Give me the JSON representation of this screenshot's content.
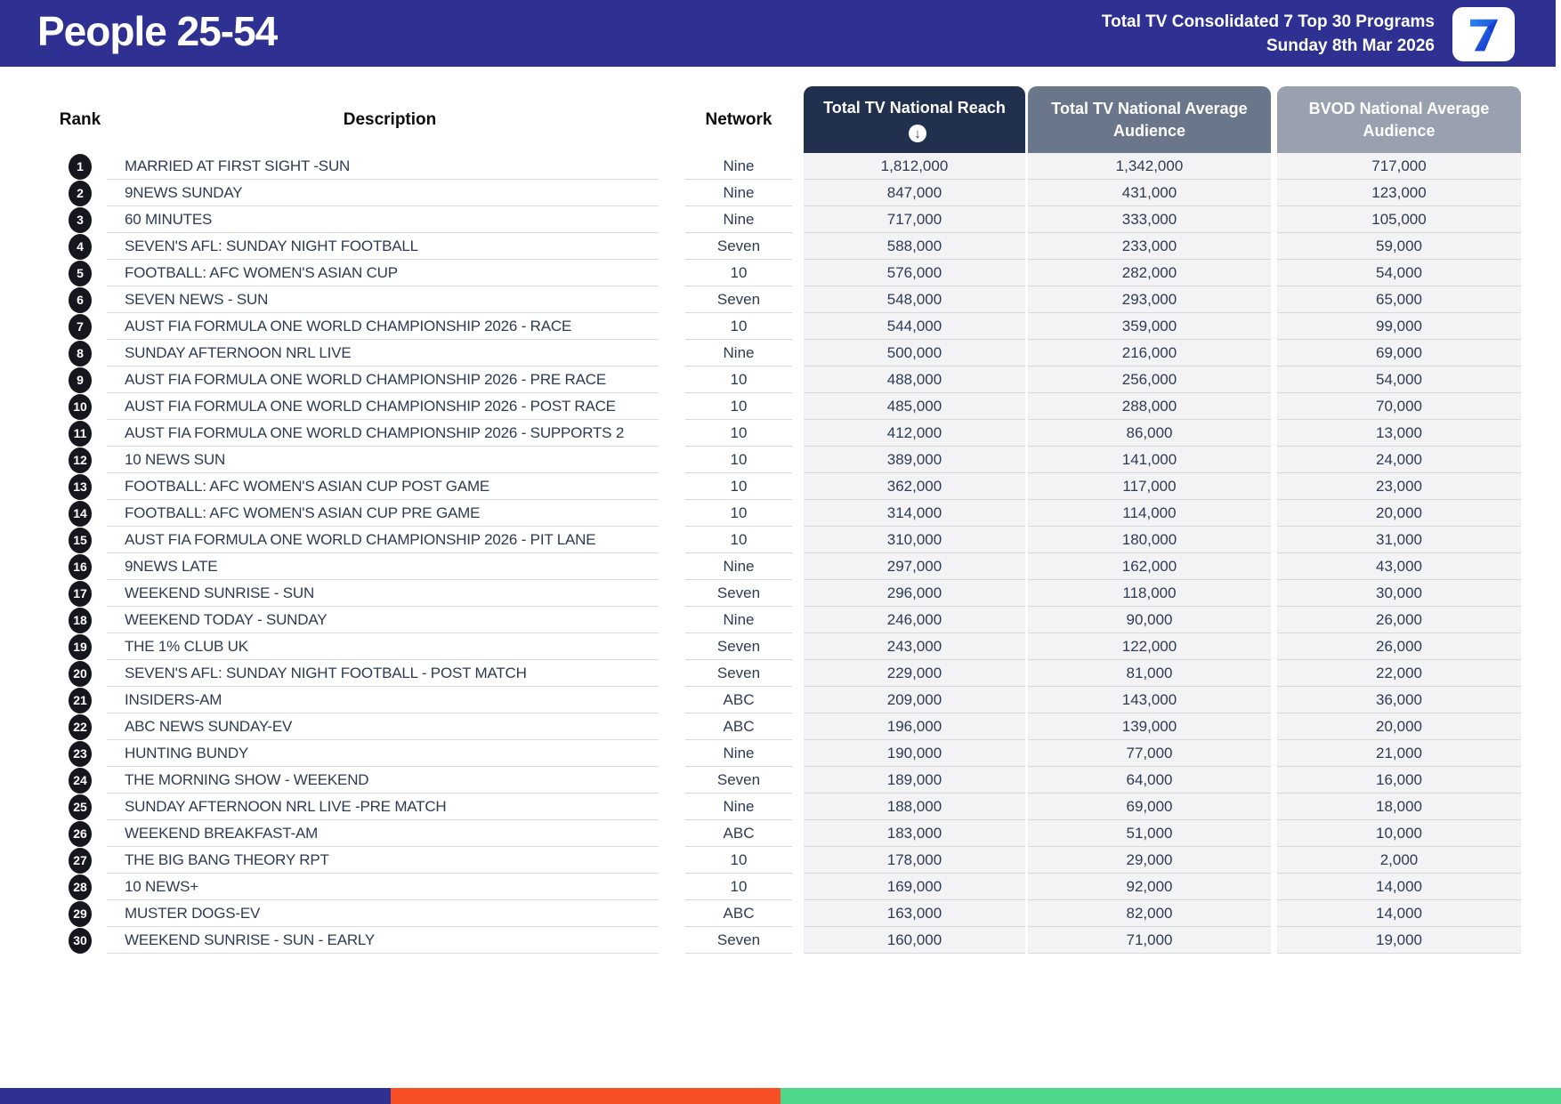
{
  "header": {
    "title": "People 25-54",
    "subtitle_line1": "Total TV Consolidated 7 Top 30 Programs",
    "subtitle_line2": "Sunday 8th Mar 2026",
    "logo_text": "7",
    "banner_color": "#2e3192"
  },
  "table": {
    "sort_icon": "↓",
    "columns": {
      "rank_label": "Rank",
      "description_label": "Description",
      "network_label": "Network",
      "metrics": [
        {
          "label": "Total TV National Reach",
          "color": "#20304e",
          "sorted_descending": true
        },
        {
          "label": "Total TV National Average Audience",
          "color": "#6a7689",
          "sorted_descending": false
        },
        {
          "label": "BVOD National Average Audience",
          "color": "#99a1b1",
          "sorted_descending": false
        }
      ]
    },
    "rows": [
      {
        "rank": "1",
        "description": "MARRIED AT FIRST SIGHT -SUN",
        "network": "Nine",
        "reach": "1,812,000",
        "avg_audience": "1,342,000",
        "bvod_audience": "717,000"
      },
      {
        "rank": "2",
        "description": "9NEWS SUNDAY",
        "network": "Nine",
        "reach": "847,000",
        "avg_audience": "431,000",
        "bvod_audience": "123,000"
      },
      {
        "rank": "3",
        "description": "60 MINUTES",
        "network": "Nine",
        "reach": "717,000",
        "avg_audience": "333,000",
        "bvod_audience": "105,000"
      },
      {
        "rank": "4",
        "description": "SEVEN'S AFL: SUNDAY NIGHT FOOTBALL",
        "network": "Seven",
        "reach": "588,000",
        "avg_audience": "233,000",
        "bvod_audience": "59,000"
      },
      {
        "rank": "5",
        "description": "FOOTBALL: AFC WOMEN'S ASIAN CUP",
        "network": "10",
        "reach": "576,000",
        "avg_audience": "282,000",
        "bvod_audience": "54,000"
      },
      {
        "rank": "6",
        "description": "SEVEN NEWS - SUN",
        "network": "Seven",
        "reach": "548,000",
        "avg_audience": "293,000",
        "bvod_audience": "65,000"
      },
      {
        "rank": "7",
        "description": "AUST FIA FORMULA ONE WORLD CHAMPIONSHIP 2026 - RACE",
        "network": "10",
        "reach": "544,000",
        "avg_audience": "359,000",
        "bvod_audience": "99,000"
      },
      {
        "rank": "8",
        "description": "SUNDAY AFTERNOON NRL LIVE",
        "network": "Nine",
        "reach": "500,000",
        "avg_audience": "216,000",
        "bvod_audience": "69,000"
      },
      {
        "rank": "9",
        "description": "AUST FIA FORMULA ONE WORLD CHAMPIONSHIP 2026 - PRE RACE",
        "network": "10",
        "reach": "488,000",
        "avg_audience": "256,000",
        "bvod_audience": "54,000"
      },
      {
        "rank": "10",
        "description": "AUST FIA FORMULA ONE WORLD CHAMPIONSHIP 2026 - POST RACE",
        "network": "10",
        "reach": "485,000",
        "avg_audience": "288,000",
        "bvod_audience": "70,000"
      },
      {
        "rank": "11",
        "description": "AUST FIA FORMULA ONE WORLD CHAMPIONSHIP 2026 - SUPPORTS 2",
        "network": "10",
        "reach": "412,000",
        "avg_audience": "86,000",
        "bvod_audience": "13,000"
      },
      {
        "rank": "12",
        "description": "10 NEWS SUN",
        "network": "10",
        "reach": "389,000",
        "avg_audience": "141,000",
        "bvod_audience": "24,000"
      },
      {
        "rank": "13",
        "description": "FOOTBALL: AFC WOMEN'S ASIAN CUP POST GAME",
        "network": "10",
        "reach": "362,000",
        "avg_audience": "117,000",
        "bvod_audience": "23,000"
      },
      {
        "rank": "14",
        "description": "FOOTBALL: AFC WOMEN'S ASIAN CUP PRE GAME",
        "network": "10",
        "reach": "314,000",
        "avg_audience": "114,000",
        "bvod_audience": "20,000"
      },
      {
        "rank": "15",
        "description": "AUST FIA FORMULA ONE WORLD CHAMPIONSHIP 2026 - PIT LANE",
        "network": "10",
        "reach": "310,000",
        "avg_audience": "180,000",
        "bvod_audience": "31,000"
      },
      {
        "rank": "16",
        "description": "9NEWS LATE",
        "network": "Nine",
        "reach": "297,000",
        "avg_audience": "162,000",
        "bvod_audience": "43,000"
      },
      {
        "rank": "17",
        "description": "WEEKEND SUNRISE - SUN",
        "network": "Seven",
        "reach": "296,000",
        "avg_audience": "118,000",
        "bvod_audience": "30,000"
      },
      {
        "rank": "18",
        "description": "WEEKEND TODAY - SUNDAY",
        "network": "Nine",
        "reach": "246,000",
        "avg_audience": "90,000",
        "bvod_audience": "26,000"
      },
      {
        "rank": "19",
        "description": "THE 1% CLUB UK",
        "network": "Seven",
        "reach": "243,000",
        "avg_audience": "122,000",
        "bvod_audience": "26,000"
      },
      {
        "rank": "20",
        "description": "SEVEN'S AFL: SUNDAY NIGHT FOOTBALL - POST MATCH",
        "network": "Seven",
        "reach": "229,000",
        "avg_audience": "81,000",
        "bvod_audience": "22,000"
      },
      {
        "rank": "21",
        "description": "INSIDERS-AM",
        "network": "ABC",
        "reach": "209,000",
        "avg_audience": "143,000",
        "bvod_audience": "36,000"
      },
      {
        "rank": "22",
        "description": "ABC NEWS SUNDAY-EV",
        "network": "ABC",
        "reach": "196,000",
        "avg_audience": "139,000",
        "bvod_audience": "20,000"
      },
      {
        "rank": "23",
        "description": "HUNTING BUNDY",
        "network": "Nine",
        "reach": "190,000",
        "avg_audience": "77,000",
        "bvod_audience": "21,000"
      },
      {
        "rank": "24",
        "description": "THE MORNING SHOW - WEEKEND",
        "network": "Seven",
        "reach": "189,000",
        "avg_audience": "64,000",
        "bvod_audience": "16,000"
      },
      {
        "rank": "25",
        "description": "SUNDAY AFTERNOON NRL LIVE -PRE MATCH",
        "network": "Nine",
        "reach": "188,000",
        "avg_audience": "69,000",
        "bvod_audience": "18,000"
      },
      {
        "rank": "26",
        "description": "WEEKEND BREAKFAST-AM",
        "network": "ABC",
        "reach": "183,000",
        "avg_audience": "51,000",
        "bvod_audience": "10,000"
      },
      {
        "rank": "27",
        "description": "THE BIG BANG THEORY RPT",
        "network": "10",
        "reach": "178,000",
        "avg_audience": "29,000",
        "bvod_audience": "2,000"
      },
      {
        "rank": "28",
        "description": "10 NEWS+",
        "network": "10",
        "reach": "169,000",
        "avg_audience": "92,000",
        "bvod_audience": "14,000"
      },
      {
        "rank": "29",
        "description": "MUSTER DOGS-EV",
        "network": "ABC",
        "reach": "163,000",
        "avg_audience": "82,000",
        "bvod_audience": "14,000"
      },
      {
        "rank": "30",
        "description": "WEEKEND SUNRISE - SUN - EARLY",
        "network": "Seven",
        "reach": "160,000",
        "avg_audience": "71,000",
        "bvod_audience": "19,000"
      }
    ]
  },
  "footer_bar": {
    "segments": [
      {
        "color": "#2e3192",
        "width_pct": 25
      },
      {
        "color": "#f94f27",
        "width_pct": 25
      },
      {
        "color": "#4fd78c",
        "width_pct": 50
      }
    ]
  }
}
